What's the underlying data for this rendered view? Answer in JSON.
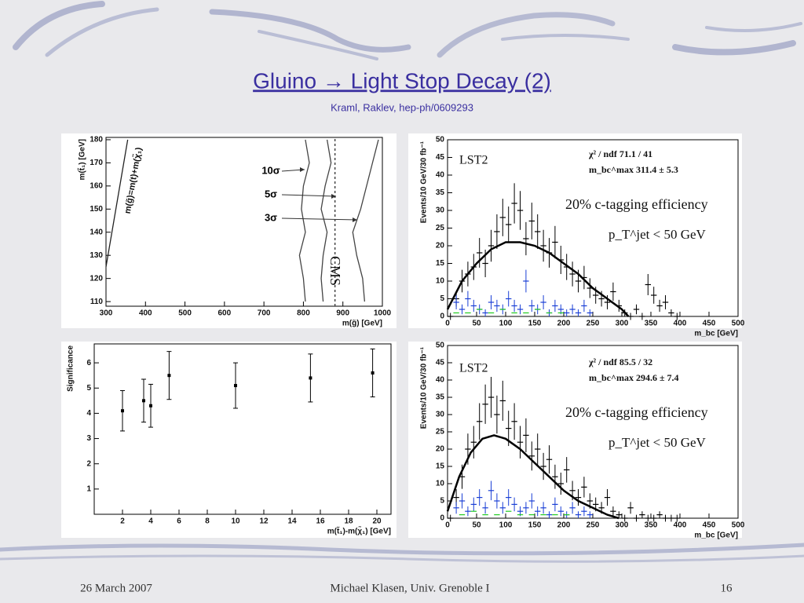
{
  "slide": {
    "title": "Gluino → Light Stop Decay (2)",
    "subtitle": "Kraml, Raklev, hep-ph/0609293",
    "footer": {
      "date": "26 March 2007",
      "author": "Michael Klasen, Univ. Grenoble I",
      "page": 16
    }
  },
  "chart_data": [
    {
      "type": "line",
      "xlabel": "m(g̃) [GeV]",
      "ylabel": "m(t̃₁) [GeV]",
      "xlim": [
        300,
        1000
      ],
      "ylim": [
        108,
        181
      ],
      "xticks": [
        300,
        400,
        500,
        600,
        700,
        800,
        900,
        1000
      ],
      "yticks": [
        110,
        120,
        130,
        140,
        150,
        160,
        170,
        180
      ],
      "series": [
        {
          "name": "10σ",
          "color": "#444444",
          "x": [
            805,
            800,
            790,
            805,
            795,
            800,
            815,
            805
          ],
          "values": [
            110,
            120,
            130,
            140,
            150,
            160,
            170,
            180
          ]
        },
        {
          "name": "5σ",
          "color": "#444444",
          "x": [
            850,
            845,
            850,
            860,
            845,
            855,
            870,
            860
          ],
          "values": [
            110,
            120,
            130,
            140,
            150,
            160,
            170,
            180
          ]
        },
        {
          "name": "3σ",
          "color": "#444444",
          "x": [
            955,
            950,
            935,
            925,
            945,
            960,
            975,
            990
          ],
          "values": [
            110,
            120,
            130,
            140,
            150,
            160,
            170,
            180
          ]
        },
        {
          "color": "#222222",
          "x": [
            300,
            355
          ],
          "values": [
            125,
            180
          ]
        },
        {
          "color": "#333333",
          "style": "dashed",
          "x": [
            880,
            880
          ],
          "values": [
            108,
            181
          ]
        }
      ],
      "annotations": [
        "CMS",
        "m(g̃)=m(t)+m(χ̃₁)"
      ]
    },
    {
      "type": "scatter",
      "xlabel": "m_bc [GeV]",
      "ylabel": "Events/10 GeV/30 fb⁻¹",
      "xlim": [
        0,
        500
      ],
      "ylim": [
        0,
        50
      ],
      "xticks": [
        0,
        50,
        100,
        150,
        200,
        250,
        300,
        350,
        400,
        450,
        500
      ],
      "yticks": [
        0,
        5,
        10,
        15,
        20,
        25,
        30,
        35,
        40,
        45,
        50
      ],
      "series": [
        {
          "color": "#000000",
          "x": [
            5,
            15,
            25,
            35,
            45,
            55,
            65,
            75,
            85,
            95,
            105,
            115,
            125,
            135,
            145,
            155,
            165,
            175,
            185,
            195,
            205,
            215,
            225,
            235,
            245,
            255,
            265,
            275,
            285,
            295,
            305,
            315,
            325,
            335,
            345,
            355,
            365,
            375,
            385,
            395
          ],
          "values": [
            0,
            5,
            10,
            12,
            14,
            18,
            15,
            20,
            24,
            28,
            26,
            32,
            30,
            22,
            27,
            24,
            20,
            18,
            21,
            16,
            14,
            12,
            10,
            11,
            8,
            6,
            5,
            4,
            7,
            3,
            1,
            0,
            2,
            0,
            9,
            6,
            3,
            4,
            1,
            0
          ],
          "errors": [
            1,
            2.2,
            3.2,
            3.5,
            3.7,
            4.2,
            3.9,
            4.5,
            4.9,
            5.3,
            5.1,
            5.7,
            5.5,
            4.7,
            5.2,
            4.9,
            4.5,
            4.2,
            4.6,
            4,
            3.7,
            3.5,
            3.2,
            3.3,
            2.8,
            2.4,
            2.2,
            2,
            2.6,
            1.7,
            1,
            1,
            1.4,
            1,
            3,
            2.4,
            1.7,
            2,
            1,
            1
          ]
        },
        {
          "color": "#1a3fd6",
          "x": [
            15,
            25,
            35,
            45,
            55,
            65,
            75,
            85,
            95,
            105,
            115,
            125,
            135,
            145,
            155,
            165,
            175,
            185,
            195,
            205,
            215,
            225,
            235,
            245
          ],
          "values": [
            4,
            2,
            5,
            3,
            2,
            1,
            4,
            3,
            2,
            5,
            3,
            2,
            10,
            3,
            2,
            4,
            1,
            3,
            2,
            1,
            2,
            1,
            3,
            1
          ],
          "errors": [
            2,
            1.4,
            2.2,
            1.7,
            1.4,
            1,
            2,
            1.7,
            1.4,
            2.2,
            1.7,
            1.4,
            3.2,
            1.7,
            1.4,
            2,
            1,
            1.7,
            1.4,
            1,
            1.4,
            1,
            1.7,
            1
          ]
        },
        {
          "color": "#22cc22",
          "x": [
            15,
            35,
            55,
            75,
            95,
            115,
            135,
            155,
            175,
            195
          ],
          "values": [
            1,
            1,
            2,
            1,
            2,
            1,
            1,
            2,
            1,
            1
          ]
        },
        {
          "color": "#000000",
          "style": "curve",
          "x": [
            0,
            25,
            50,
            75,
            100,
            125,
            150,
            175,
            200,
            225,
            250,
            275,
            300,
            311.4
          ],
          "values": [
            2,
            10,
            15,
            19,
            21,
            21,
            20,
            18,
            15,
            12,
            8,
            5,
            2,
            0
          ]
        }
      ],
      "annotations": [
        "LST2",
        "χ² / ndf    71.1 / 41",
        "m_bc^max    311.4 ± 5.3",
        "20% c-tagging efficiency",
        "p_T^jet  <  50 GeV"
      ]
    },
    {
      "type": "scatter",
      "xlabel": "m(t̃₁)-m(χ̃₁) [GeV]",
      "ylabel": "Significance",
      "xlim": [
        0,
        21
      ],
      "ylim": [
        0,
        6.75
      ],
      "xticks": [
        2,
        4,
        6,
        8,
        10,
        12,
        14,
        16,
        18,
        20
      ],
      "yticks": [
        1,
        2,
        3,
        4,
        5,
        6
      ],
      "series": [
        {
          "color": "#000000",
          "x": [
            2,
            3.5,
            4,
            5.3,
            10,
            15.3,
            19.7
          ],
          "values": [
            4.1,
            4.5,
            4.3,
            5.5,
            5.1,
            5.4,
            5.6
          ],
          "errors": [
            0.8,
            0.85,
            0.85,
            0.95,
            0.9,
            0.95,
            0.95
          ]
        }
      ],
      "annotations": []
    },
    {
      "type": "scatter",
      "xlabel": "m_bc [GeV]",
      "ylabel": "Events/10 GeV/30 fb⁻¹",
      "xlim": [
        0,
        500
      ],
      "ylim": [
        0,
        50
      ],
      "xticks": [
        0,
        50,
        100,
        150,
        200,
        250,
        300,
        350,
        400,
        450,
        500
      ],
      "yticks": [
        0,
        5,
        10,
        15,
        20,
        25,
        30,
        35,
        40,
        45,
        50
      ],
      "series": [
        {
          "color": "#000000",
          "x": [
            5,
            15,
            25,
            35,
            45,
            55,
            65,
            75,
            85,
            95,
            105,
            115,
            125,
            135,
            145,
            155,
            165,
            175,
            185,
            195,
            205,
            215,
            225,
            235,
            245,
            255,
            265,
            275,
            285,
            295,
            305,
            315,
            325,
            335,
            345,
            355,
            365,
            375,
            385,
            395
          ],
          "values": [
            0,
            6,
            12,
            20,
            22,
            28,
            33,
            35,
            30,
            34,
            26,
            28,
            22,
            24,
            18,
            20,
            15,
            17,
            12,
            10,
            14,
            8,
            6,
            9,
            5,
            4,
            3,
            6,
            2,
            1,
            0,
            3,
            0,
            1,
            0,
            0,
            1,
            0,
            0,
            0
          ],
          "errors": [
            1,
            2.4,
            3.5,
            4.5,
            4.7,
            5.3,
            5.7,
            5.9,
            5.5,
            5.8,
            5.1,
            5.3,
            4.7,
            4.9,
            4.2,
            4.5,
            3.9,
            4.1,
            3.5,
            3.2,
            3.7,
            2.8,
            2.4,
            3,
            2.2,
            2,
            1.7,
            2.4,
            1.4,
            1,
            1,
            1.7,
            1,
            1,
            1,
            1,
            1,
            1,
            1,
            1
          ]
        },
        {
          "color": "#1a3fd6",
          "x": [
            15,
            25,
            35,
            45,
            55,
            65,
            75,
            85,
            95,
            105,
            115,
            125,
            135,
            145,
            155,
            165,
            175,
            185,
            195,
            205,
            215,
            225,
            235,
            245
          ],
          "values": [
            3,
            5,
            2,
            4,
            6,
            3,
            8,
            5,
            3,
            6,
            4,
            2,
            3,
            5,
            2,
            3,
            1,
            4,
            2,
            1,
            3,
            1,
            2,
            1
          ],
          "errors": [
            1.7,
            2.2,
            1.4,
            2,
            2.4,
            1.7,
            2.8,
            2.2,
            1.7,
            2.4,
            2,
            1.4,
            1.7,
            2.2,
            1.4,
            1.7,
            1,
            2,
            1.4,
            1,
            1.7,
            1,
            1.4,
            1
          ]
        },
        {
          "color": "#22cc22",
          "x": [
            25,
            45,
            65,
            85,
            105,
            125,
            145,
            165,
            185,
            205
          ],
          "values": [
            1,
            2,
            1,
            1,
            2,
            1,
            1,
            1,
            1,
            1
          ]
        },
        {
          "color": "#000000",
          "style": "curve",
          "x": [
            0,
            20,
            40,
            60,
            80,
            100,
            125,
            150,
            175,
            200,
            225,
            250,
            275,
            294.6
          ],
          "values": [
            2,
            12,
            19,
            23,
            24,
            23,
            20,
            16,
            12,
            8,
            5,
            3,
            1,
            0
          ]
        }
      ],
      "annotations": [
        "LST2",
        "χ² / ndf    85.5 / 32",
        "m_bc^max    294.6 ± 7.4",
        "20% c-tagging efficiency",
        "p_T^jet  <  50 GeV"
      ]
    }
  ]
}
